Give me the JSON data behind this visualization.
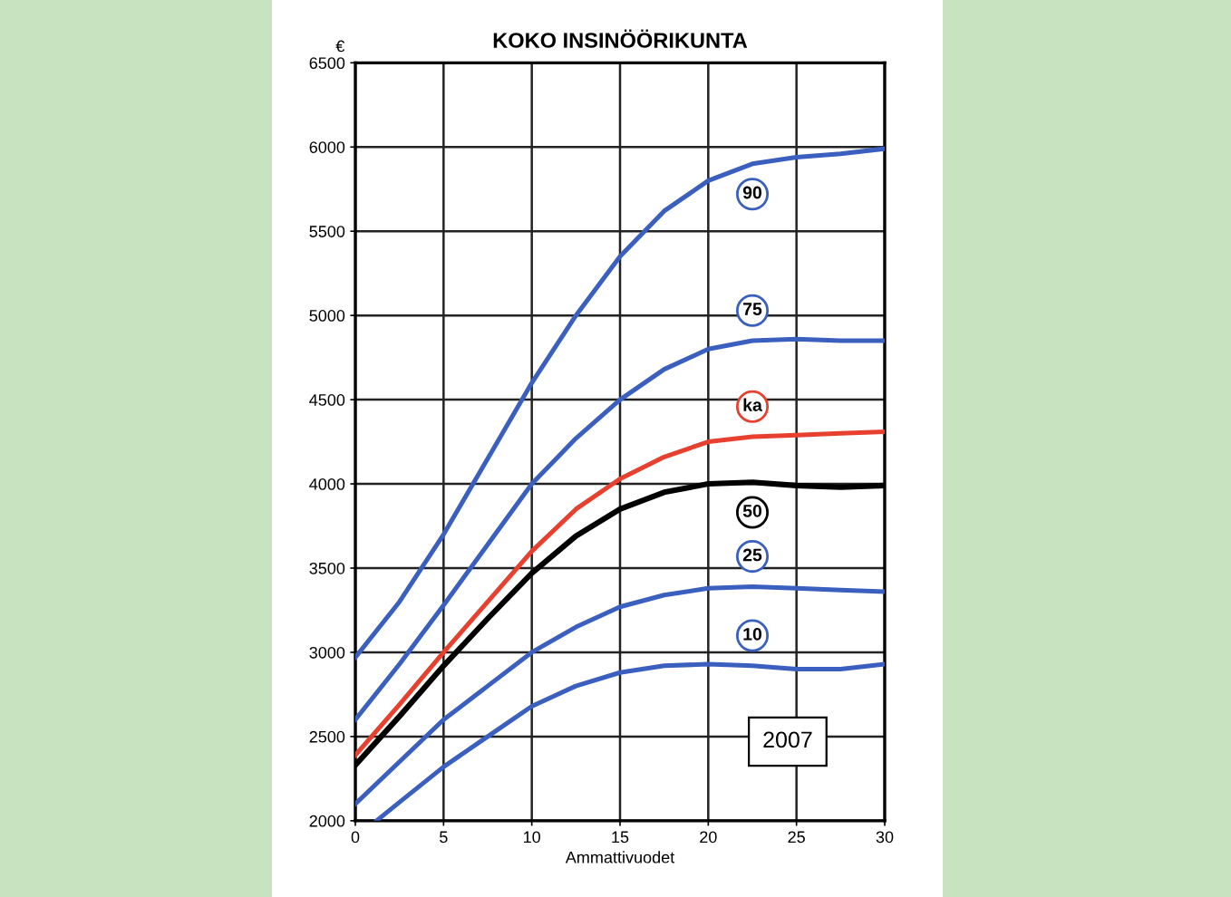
{
  "chart_data": {
    "type": "line",
    "title": "KOKO INSINÖÖRIKUNTA",
    "xlabel": "Ammattivuodet",
    "ylabel": "€",
    "x": [
      0,
      2.5,
      5,
      7.5,
      10,
      12.5,
      15,
      17.5,
      20,
      22.5,
      25,
      27.5,
      30
    ],
    "series": [
      {
        "name": "90",
        "color": "#3a5fbf",
        "values": [
          2970,
          3300,
          3700,
          4150,
          4600,
          5000,
          5350,
          5620,
          5800,
          5900,
          5940,
          5960,
          5990
        ]
      },
      {
        "name": "75",
        "color": "#3a5fbf",
        "values": [
          2600,
          2930,
          3280,
          3640,
          4000,
          4270,
          4500,
          4680,
          4800,
          4850,
          4860,
          4850,
          4850
        ]
      },
      {
        "name": "ka",
        "color": "#e8402f",
        "values": [
          2390,
          2690,
          3000,
          3300,
          3600,
          3850,
          4030,
          4160,
          4250,
          4280,
          4290,
          4300,
          4310
        ]
      },
      {
        "name": "50",
        "color": "#000000",
        "values": [
          2330,
          2620,
          2920,
          3200,
          3470,
          3690,
          3850,
          3950,
          4000,
          4010,
          3990,
          3980,
          3990
        ]
      },
      {
        "name": "25",
        "color": "#3a5fbf",
        "values": [
          2100,
          2350,
          2600,
          2800,
          3000,
          3150,
          3270,
          3340,
          3380,
          3390,
          3380,
          3370,
          3360
        ]
      },
      {
        "name": "10",
        "color": "#3a5fbf",
        "x": [
          1.2,
          2.5,
          5,
          7.5,
          10,
          12.5,
          15,
          17.5,
          20,
          22.5,
          25,
          27.5,
          30
        ],
        "values": [
          2000,
          2110,
          2320,
          2500,
          2680,
          2800,
          2880,
          2920,
          2930,
          2920,
          2900,
          2900,
          2930
        ]
      }
    ],
    "annotations": [
      {
        "text": "2007",
        "x": 24.5,
        "y": 2470
      }
    ],
    "xlim": [
      0,
      30
    ],
    "xticks": [
      0,
      5,
      10,
      15,
      20,
      25,
      30
    ],
    "ylim": [
      2000,
      6500
    ],
    "yticks": [
      2000,
      2500,
      3000,
      3500,
      4000,
      4500,
      5000,
      5500,
      6000,
      6500
    ],
    "grid": true,
    "legend": false,
    "marker": "none",
    "line_style": "solid"
  }
}
